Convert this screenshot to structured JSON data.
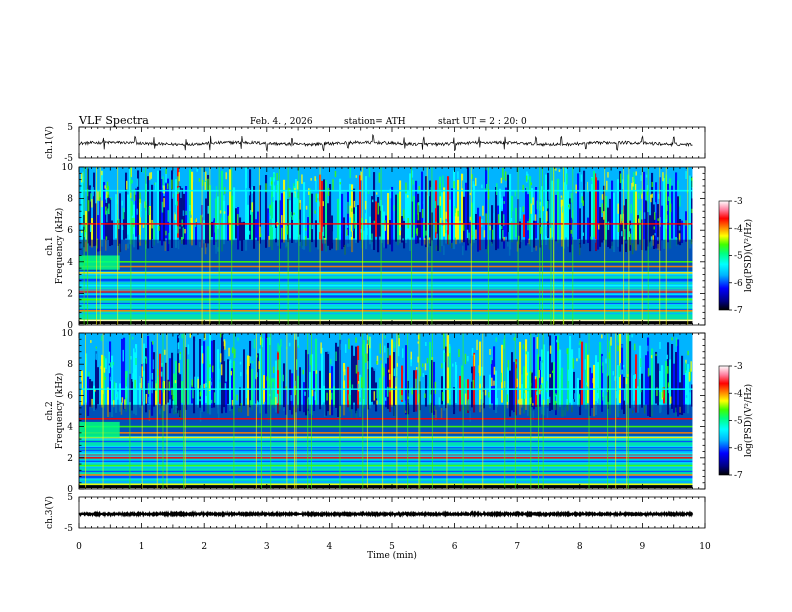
{
  "header": {
    "title": "VLF  Spectra",
    "date": "Feb. 4. , 2026",
    "station": "station= ATH",
    "start": "start  UT  =   2 : 20: 0"
  },
  "colors": {
    "cmap": [
      "#000000",
      "#000080",
      "#0000ff",
      "#00b4ff",
      "#00ffff",
      "#00ff80",
      "#40ff00",
      "#ffff00",
      "#ff8000",
      "#ff0000",
      "#ff80a0",
      "#ffffff"
    ]
  },
  "chart_data": [
    {
      "type": "line",
      "name": "ch1-waveform",
      "ylabel": "ch.1(V)",
      "yticks": [
        "5",
        "-5"
      ],
      "ylim": [
        -5,
        5
      ],
      "xlim": [
        0,
        9.8
      ],
      "y_mean": -0.3,
      "y_noise": 0.5,
      "spikes": [
        0.4,
        0.9,
        1.2,
        1.7,
        2.1,
        2.6,
        3.0,
        3.4,
        3.9,
        4.3,
        4.7,
        5.2,
        5.5,
        6.0,
        6.4,
        6.8,
        7.3,
        7.7,
        8.1,
        8.6,
        9.0,
        9.5
      ]
    },
    {
      "type": "heatmap",
      "name": "ch1-spectrogram",
      "ylabel": "ch.1\nFrequency (kHz)",
      "ylabel_line1": "ch.1",
      "ylabel_line2": "Frequency  (kHz)",
      "yticks": [
        "0",
        "2",
        "4",
        "6",
        "8",
        "10"
      ],
      "ylim": [
        0,
        10
      ],
      "xlim": [
        0,
        9.8
      ],
      "colorbar": {
        "label": "log(PSD)(V²/Hz)",
        "ticks": [
          "-3",
          "-4",
          "-5",
          "-6",
          "-7"
        ],
        "range": [
          -7,
          -3
        ]
      },
      "bands_khz": [
        0.3,
        0.9,
        1.6,
        2.1,
        2.5,
        3.3,
        3.7,
        4.0,
        6.4,
        8.5
      ],
      "gap_khz": [
        0.0,
        0.3
      ],
      "early_segment": {
        "x_end": 0.65,
        "f_low": 3.5,
        "f_high": 4.4
      }
    },
    {
      "type": "heatmap",
      "name": "ch2-spectrogram",
      "ylabel": "ch.2\nFrequency (kHz)",
      "ylabel_line1": "ch.2",
      "ylabel_line2": "Frequency  (kHz)",
      "yticks": [
        "0",
        "2",
        "4",
        "6",
        "8",
        "10"
      ],
      "ylim": [
        0,
        10
      ],
      "xlim": [
        0,
        9.8
      ],
      "colorbar": {
        "label": "log(PSD)(V²/Hz)",
        "ticks": [
          "-3",
          "-4",
          "-5",
          "-6",
          "-7"
        ],
        "range": [
          -7,
          -3
        ]
      },
      "bands_khz": [
        0.3,
        0.9,
        1.5,
        2.0,
        2.3,
        3.3,
        3.6,
        4.0,
        4.5,
        6.4
      ],
      "gap_khz": [
        0.0,
        0.2
      ],
      "early_segment": {
        "x_end": 0.65,
        "f_low": 3.3,
        "f_high": 4.3
      }
    },
    {
      "type": "line",
      "name": "ch3-waveform",
      "ylabel": "ch.3(V)",
      "yticks": [
        "5",
        "-5"
      ],
      "ylim": [
        -5,
        5
      ],
      "xlim": [
        0,
        9.8
      ],
      "y_mean": -0.5,
      "y_noise": 0.25
    }
  ],
  "xaxis": {
    "label": "Time  (min)",
    "ticks": [
      "0",
      "1",
      "2",
      "3",
      "4",
      "5",
      "6",
      "7",
      "8",
      "9",
      "10"
    ],
    "xlim": [
      0,
      10
    ]
  }
}
